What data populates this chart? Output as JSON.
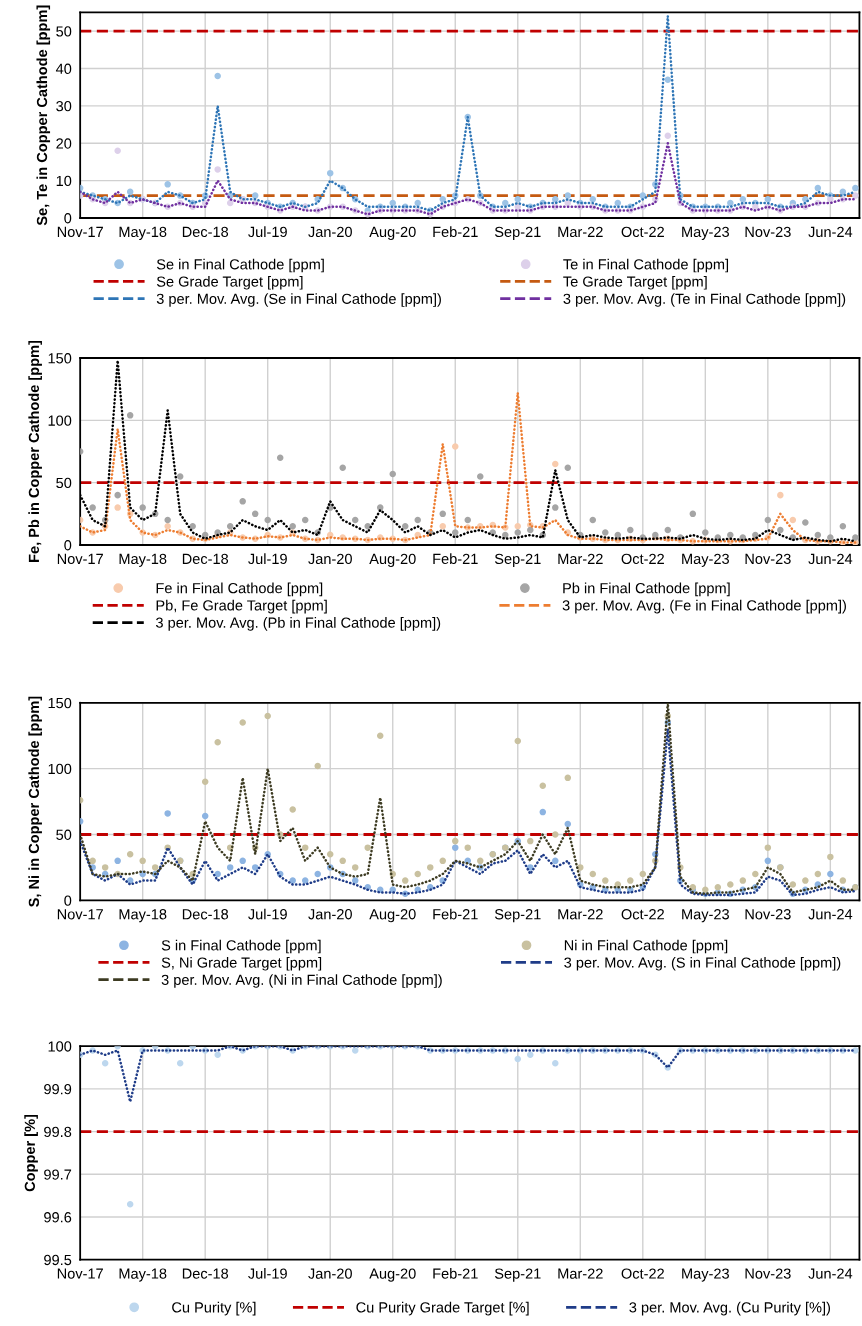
{
  "chart_data": [
    {
      "type": "line",
      "ylabel": "Se, Te in Copper Cathode [ppm]",
      "x": [
        "2017-11-11",
        "2017-12-21",
        "2018-01-30",
        "2018-03-11",
        "2018-04-20",
        "2018-05-30",
        "2018-07-09",
        "2018-08-18",
        "2018-09-27",
        "2018-11-06",
        "2018-12-16",
        "2019-01-25",
        "2019-03-06",
        "2019-04-15",
        "2019-05-25",
        "2019-07-04",
        "2019-08-13",
        "2019-09-22",
        "2019-11-01",
        "2019-12-11",
        "2020-01-20",
        "2020-02-29",
        "2020-04-09",
        "2020-05-19",
        "2020-06-28",
        "2020-08-07",
        "2020-09-16",
        "2020-10-26",
        "2020-12-05",
        "2021-01-14",
        "2021-02-23",
        "2021-04-04",
        "2021-05-14",
        "2021-06-23",
        "2021-08-02",
        "2021-09-11",
        "2021-10-21",
        "2021-11-30",
        "2022-01-09",
        "2022-02-18",
        "2022-03-30",
        "2022-05-09",
        "2022-06-18",
        "2022-07-28",
        "2022-09-06",
        "2022-10-16",
        "2022-11-25",
        "2023-01-04",
        "2023-02-13",
        "2023-03-25",
        "2023-05-04",
        "2023-06-13",
        "2023-07-23",
        "2023-09-01",
        "2023-10-11",
        "2023-11-20",
        "2023-12-30",
        "2024-02-08",
        "2024-03-19",
        "2024-04-28",
        "2024-06-07",
        "2024-07-17",
        "2024-08-26"
      ],
      "xlim": [
        "2017-11-11",
        "2024-09-08"
      ],
      "xticks": [
        {
          "value": "2017-11-11",
          "label": "Nov-17"
        },
        {
          "value": "2018-05-30",
          "label": "May-18"
        },
        {
          "value": "2018-12-16",
          "label": "Dec-18"
        },
        {
          "value": "2019-07-04",
          "label": "Jul-19"
        },
        {
          "value": "2020-01-20",
          "label": "Jan-20"
        },
        {
          "value": "2020-08-07",
          "label": "Aug-20"
        },
        {
          "value": "2021-02-23",
          "label": "Feb-21"
        },
        {
          "value": "2021-09-11",
          "label": "Sep-21"
        },
        {
          "value": "2022-03-30",
          "label": "Mar-22"
        },
        {
          "value": "2022-10-16",
          "label": "Oct-22"
        },
        {
          "value": "2023-05-04",
          "label": "May-23"
        },
        {
          "value": "2023-11-20",
          "label": "Nov-23"
        },
        {
          "value": "2024-06-07",
          "label": "Jun-24"
        }
      ],
      "ylim": [
        0,
        55
      ],
      "yticks": [
        0,
        10,
        20,
        30,
        40,
        50
      ],
      "grid": true,
      "legend": "bottom",
      "series": [
        {
          "name": "Se in Final Cathode [ppm]",
          "type": "scatter",
          "marker": "circle",
          "color": "#9dc3e6",
          "values": [
            8,
            6,
            5,
            4,
            7,
            5,
            4,
            9,
            6,
            4,
            6,
            38,
            6,
            5,
            6,
            4,
            3,
            4,
            3,
            5,
            12,
            8,
            5,
            2,
            3,
            4,
            3,
            4,
            2,
            5,
            6,
            27,
            6,
            3,
            4,
            5,
            3,
            4,
            5,
            6,
            4,
            5,
            3,
            4,
            3,
            6,
            9,
            37,
            6,
            3,
            3,
            3,
            4,
            5,
            4,
            5,
            3,
            4,
            5,
            8,
            6,
            7,
            8
          ]
        },
        {
          "name": "Te in Final Cathode [ppm]",
          "type": "scatter",
          "marker": "circle",
          "color": "#ddd0ea",
          "values": [
            6,
            5,
            4,
            18,
            4,
            5,
            4,
            3,
            4,
            3,
            4,
            13,
            4,
            5,
            4,
            3,
            2,
            3,
            3,
            2,
            3,
            3,
            2,
            1,
            2,
            2,
            2,
            2,
            1,
            3,
            4,
            5,
            4,
            2,
            2,
            3,
            2,
            3,
            3,
            4,
            3,
            3,
            2,
            2,
            2,
            3,
            5,
            22,
            4,
            2,
            2,
            2,
            2,
            3,
            3,
            3,
            2,
            3,
            3,
            4,
            5,
            5,
            6
          ]
        },
        {
          "name": "3 per. Mov. Avg. (Se in Final Cathode [ppm])",
          "line_style": "dotted",
          "color": "#2e75b6",
          "values": [
            7,
            6,
            5,
            4,
            6,
            5,
            4,
            7,
            6,
            4,
            5,
            30,
            7,
            5,
            5,
            4,
            3,
            4,
            3,
            4,
            10,
            8,
            5,
            3,
            3,
            3,
            3,
            3,
            2,
            4,
            5,
            27,
            6,
            3,
            3,
            4,
            3,
            4,
            4,
            5,
            4,
            4,
            3,
            3,
            3,
            5,
            7,
            54,
            5,
            3,
            3,
            3,
            3,
            4,
            4,
            4,
            3,
            3,
            4,
            7,
            6,
            6,
            7
          ]
        },
        {
          "name": "3 per. Mov. Avg. (Te in Final Cathode [ppm])",
          "line_style": "dotted",
          "color": "#7030a0",
          "values": [
            7,
            5,
            4,
            7,
            4,
            5,
            4,
            3,
            4,
            3,
            3,
            10,
            5,
            4,
            4,
            3,
            2,
            3,
            2,
            2,
            3,
            3,
            2,
            1,
            2,
            2,
            2,
            2,
            1,
            3,
            4,
            5,
            4,
            2,
            2,
            2,
            2,
            3,
            3,
            3,
            3,
            3,
            2,
            2,
            2,
            3,
            4,
            20,
            4,
            2,
            2,
            2,
            2,
            3,
            2,
            3,
            2,
            3,
            3,
            4,
            4,
            5,
            5
          ]
        }
      ],
      "ref_lines": [
        {
          "axis": "y",
          "value": 50,
          "label": "Se Grade Target [ppm]",
          "color": "#c00000",
          "line_style": "dashed"
        },
        {
          "axis": "y",
          "value": 6,
          "label": "Te Grade Target [ppm]",
          "color": "#c55a11",
          "line_style": "dashed"
        }
      ]
    },
    {
      "type": "line",
      "ylabel": "Fe, Pb in Copper Cathode [ppm]",
      "x": [
        "2017-11-11",
        "2017-12-21",
        "2018-01-30",
        "2018-03-11",
        "2018-04-20",
        "2018-05-30",
        "2018-07-09",
        "2018-08-18",
        "2018-09-27",
        "2018-11-06",
        "2018-12-16",
        "2019-01-25",
        "2019-03-06",
        "2019-04-15",
        "2019-05-25",
        "2019-07-04",
        "2019-08-13",
        "2019-09-22",
        "2019-11-01",
        "2019-12-11",
        "2020-01-20",
        "2020-02-29",
        "2020-04-09",
        "2020-05-19",
        "2020-06-28",
        "2020-08-07",
        "2020-09-16",
        "2020-10-26",
        "2020-12-05",
        "2021-01-14",
        "2021-02-23",
        "2021-04-04",
        "2021-05-14",
        "2021-06-23",
        "2021-08-02",
        "2021-09-11",
        "2021-10-21",
        "2021-11-30",
        "2022-01-09",
        "2022-02-18",
        "2022-03-30",
        "2022-05-09",
        "2022-06-18",
        "2022-07-28",
        "2022-09-06",
        "2022-10-16",
        "2022-11-25",
        "2023-01-04",
        "2023-02-13",
        "2023-03-25",
        "2023-05-04",
        "2023-06-13",
        "2023-07-23",
        "2023-09-01",
        "2023-10-11",
        "2023-11-20",
        "2023-12-30",
        "2024-02-08",
        "2024-03-19",
        "2024-04-28",
        "2024-06-07",
        "2024-07-17",
        "2024-08-26"
      ],
      "xlim": [
        "2017-11-11",
        "2024-09-08"
      ],
      "xticks": [
        {
          "value": "2017-11-11",
          "label": "Nov-17"
        },
        {
          "value": "2018-05-30",
          "label": "May-18"
        },
        {
          "value": "2018-12-16",
          "label": "Dec-18"
        },
        {
          "value": "2019-07-04",
          "label": "Jul-19"
        },
        {
          "value": "2020-01-20",
          "label": "Jan-20"
        },
        {
          "value": "2020-08-07",
          "label": "Aug-20"
        },
        {
          "value": "2021-02-23",
          "label": "Feb-21"
        },
        {
          "value": "2021-09-11",
          "label": "Sep-21"
        },
        {
          "value": "2022-03-30",
          "label": "Mar-22"
        },
        {
          "value": "2022-10-16",
          "label": "Oct-22"
        },
        {
          "value": "2023-05-04",
          "label": "May-23"
        },
        {
          "value": "2023-11-20",
          "label": "Nov-23"
        },
        {
          "value": "2024-06-07",
          "label": "Jun-24"
        }
      ],
      "ylim": [
        0,
        150
      ],
      "yticks": [
        0,
        50,
        100,
        150
      ],
      "grid": true,
      "legend": "bottom",
      "series": [
        {
          "name": "Fe in Final Cathode [ppm]",
          "type": "scatter",
          "marker": "circle",
          "color": "#f8cbad",
          "values": [
            20,
            10,
            15,
            30,
            25,
            10,
            8,
            15,
            10,
            5,
            5,
            8,
            10,
            6,
            5,
            8,
            6,
            10,
            5,
            4,
            8,
            6,
            5,
            4,
            6,
            5,
            4,
            8,
            10,
            15,
            79,
            14,
            15,
            16,
            14,
            15,
            16,
            15,
            65,
            10,
            6,
            5,
            4,
            4,
            5,
            4,
            6,
            5,
            4,
            3,
            4,
            4,
            3,
            4,
            5,
            6,
            40,
            20,
            4,
            3,
            3,
            2,
            2
          ]
        },
        {
          "name": "Pb in Final Cathode [ppm]",
          "type": "scatter",
          "marker": "circle",
          "color": "#a5a5a5",
          "values": [
            75,
            30,
            20,
            40,
            104,
            30,
            25,
            20,
            55,
            15,
            8,
            10,
            15,
            35,
            25,
            20,
            70,
            15,
            20,
            10,
            30,
            62,
            20,
            15,
            30,
            57,
            15,
            20,
            10,
            25,
            10,
            20,
            55,
            10,
            8,
            10,
            12,
            8,
            30,
            62,
            8,
            20,
            10,
            8,
            12,
            6,
            8,
            12,
            6,
            25,
            10,
            6,
            8,
            6,
            8,
            20,
            12,
            6,
            18,
            8,
            6,
            15,
            6
          ]
        },
        {
          "name": "3 per. Mov. Avg. (Fe in Final Cathode [ppm])",
          "line_style": "dotted",
          "color": "#ed7d31",
          "values": [
            15,
            10,
            12,
            93,
            20,
            10,
            8,
            12,
            10,
            5,
            4,
            6,
            8,
            6,
            5,
            7,
            6,
            8,
            5,
            4,
            6,
            5,
            5,
            4,
            5,
            5,
            4,
            6,
            8,
            81,
            15,
            14,
            14,
            15,
            14,
            122,
            15,
            14,
            20,
            8,
            5,
            5,
            4,
            4,
            4,
            4,
            5,
            4,
            4,
            3,
            3,
            3,
            3,
            3,
            4,
            5,
            25,
            12,
            4,
            3,
            3,
            2,
            2
          ]
        },
        {
          "name": "3 per. Mov. Avg. (Pb in Final Cathode [ppm])",
          "line_style": "dotted",
          "color": "#000000",
          "values": [
            40,
            20,
            15,
            148,
            30,
            20,
            25,
            108,
            25,
            10,
            5,
            8,
            10,
            20,
            15,
            12,
            20,
            10,
            12,
            8,
            35,
            20,
            15,
            10,
            28,
            20,
            10,
            15,
            8,
            12,
            6,
            10,
            12,
            8,
            5,
            6,
            8,
            6,
            60,
            20,
            6,
            8,
            6,
            5,
            6,
            5,
            5,
            6,
            5,
            8,
            5,
            4,
            5,
            4,
            5,
            12,
            8,
            4,
            6,
            4,
            3,
            5,
            3
          ]
        }
      ],
      "ref_lines": [
        {
          "axis": "y",
          "value": 50,
          "label": "Pb, Fe Grade Target [ppm]",
          "color": "#c00000",
          "line_style": "dashed"
        }
      ]
    },
    {
      "type": "line",
      "ylabel": "S, Ni in Copper Cathode [ppm]",
      "x": [
        "2017-11-11",
        "2017-12-21",
        "2018-01-30",
        "2018-03-11",
        "2018-04-20",
        "2018-05-30",
        "2018-07-09",
        "2018-08-18",
        "2018-09-27",
        "2018-11-06",
        "2018-12-16",
        "2019-01-25",
        "2019-03-06",
        "2019-04-15",
        "2019-05-25",
        "2019-07-04",
        "2019-08-13",
        "2019-09-22",
        "2019-11-01",
        "2019-12-11",
        "2020-01-20",
        "2020-02-29",
        "2020-04-09",
        "2020-05-19",
        "2020-06-28",
        "2020-08-07",
        "2020-09-16",
        "2020-10-26",
        "2020-12-05",
        "2021-01-14",
        "2021-02-23",
        "2021-04-04",
        "2021-05-14",
        "2021-06-23",
        "2021-08-02",
        "2021-09-11",
        "2021-10-21",
        "2021-11-30",
        "2022-01-09",
        "2022-02-18",
        "2022-03-30",
        "2022-05-09",
        "2022-06-18",
        "2022-07-28",
        "2022-09-06",
        "2022-10-16",
        "2022-11-25",
        "2023-01-04",
        "2023-02-13",
        "2023-03-25",
        "2023-05-04",
        "2023-06-13",
        "2023-07-23",
        "2023-09-01",
        "2023-10-11",
        "2023-11-20",
        "2023-12-30",
        "2024-02-08",
        "2024-03-19",
        "2024-04-28",
        "2024-06-07",
        "2024-07-17",
        "2024-08-26"
      ],
      "xlim": [
        "2017-11-11",
        "2024-09-08"
      ],
      "xticks": [
        {
          "value": "2017-11-11",
          "label": "Nov-17"
        },
        {
          "value": "2018-05-30",
          "label": "May-18"
        },
        {
          "value": "2018-12-16",
          "label": "Dec-18"
        },
        {
          "value": "2019-07-04",
          "label": "Jul-19"
        },
        {
          "value": "2020-01-20",
          "label": "Jan-20"
        },
        {
          "value": "2020-08-07",
          "label": "Aug-20"
        },
        {
          "value": "2021-02-23",
          "label": "Feb-21"
        },
        {
          "value": "2021-09-11",
          "label": "Sep-21"
        },
        {
          "value": "2022-03-30",
          "label": "Mar-22"
        },
        {
          "value": "2022-10-16",
          "label": "Oct-22"
        },
        {
          "value": "2023-05-04",
          "label": "May-23"
        },
        {
          "value": "2023-11-20",
          "label": "Nov-23"
        },
        {
          "value": "2024-06-07",
          "label": "Jun-24"
        }
      ],
      "ylim": [
        0,
        150
      ],
      "yticks": [
        0,
        50,
        100,
        150
      ],
      "grid": true,
      "legend": "bottom",
      "series": [
        {
          "name": "S in Final Cathode [ppm]",
          "type": "scatter",
          "marker": "circle",
          "color": "#8db4e2",
          "values": [
            60,
            25,
            20,
            30,
            15,
            20,
            20,
            66,
            30,
            15,
            64,
            20,
            25,
            30,
            25,
            35,
            20,
            15,
            15,
            20,
            25,
            20,
            15,
            10,
            8,
            8,
            5,
            8,
            10,
            15,
            40,
            30,
            25,
            35,
            40,
            45,
            25,
            67,
            30,
            58,
            12,
            10,
            8,
            8,
            8,
            10,
            35,
            135,
            15,
            8,
            5,
            6,
            5,
            8,
            10,
            30,
            25,
            5,
            8,
            12,
            20,
            8,
            10
          ]
        },
        {
          "name": "Ni in Final Cathode [ppm]",
          "type": "scatter",
          "marker": "circle",
          "color": "#c9c1a0",
          "values": [
            76,
            30,
            25,
            20,
            35,
            30,
            25,
            40,
            30,
            20,
            90,
            120,
            40,
            135,
            40,
            140,
            50,
            69,
            40,
            102,
            35,
            30,
            25,
            40,
            125,
            20,
            15,
            20,
            25,
            30,
            45,
            40,
            30,
            35,
            40,
            121,
            45,
            87,
            50,
            93,
            25,
            20,
            15,
            12,
            15,
            20,
            30,
            140,
            25,
            10,
            8,
            10,
            12,
            15,
            20,
            40,
            25,
            12,
            15,
            20,
            33,
            15,
            10
          ]
        },
        {
          "name": "3 per. Mov. Avg. (S in Final Cathode [ppm])",
          "line_style": "dotted",
          "color": "#1f3c88",
          "values": [
            45,
            20,
            15,
            20,
            12,
            15,
            15,
            40,
            25,
            12,
            30,
            15,
            20,
            25,
            20,
            35,
            18,
            12,
            12,
            15,
            18,
            15,
            12,
            8,
            6,
            6,
            5,
            6,
            8,
            12,
            30,
            25,
            20,
            28,
            30,
            38,
            20,
            35,
            25,
            30,
            10,
            8,
            6,
            6,
            6,
            8,
            25,
            130,
            12,
            5,
            4,
            4,
            4,
            5,
            6,
            18,
            15,
            4,
            5,
            8,
            10,
            6,
            7
          ]
        },
        {
          "name": "3 per. Mov. Avg. (Ni in Final Cathode [ppm])",
          "line_style": "dotted",
          "color": "#3d3b22",
          "values": [
            50,
            20,
            18,
            20,
            20,
            22,
            20,
            30,
            25,
            15,
            60,
            40,
            30,
            93,
            35,
            100,
            45,
            55,
            30,
            40,
            25,
            20,
            18,
            20,
            78,
            12,
            10,
            12,
            15,
            20,
            30,
            28,
            25,
            30,
            35,
            45,
            30,
            50,
            35,
            55,
            15,
            12,
            10,
            10,
            10,
            12,
            25,
            150,
            18,
            6,
            5,
            6,
            6,
            8,
            10,
            25,
            20,
            6,
            8,
            10,
            15,
            8,
            8
          ]
        }
      ],
      "ref_lines": [
        {
          "axis": "y",
          "value": 50,
          "label": "S, Ni Grade Target [ppm]",
          "color": "#c00000",
          "line_style": "dashed"
        }
      ]
    },
    {
      "type": "line",
      "ylabel": "Copper [%]",
      "x": [
        "2017-11-11",
        "2017-12-21",
        "2018-01-30",
        "2018-03-11",
        "2018-04-20",
        "2018-05-30",
        "2018-07-09",
        "2018-08-18",
        "2018-09-27",
        "2018-11-06",
        "2018-12-16",
        "2019-01-25",
        "2019-03-06",
        "2019-04-15",
        "2019-05-25",
        "2019-07-04",
        "2019-08-13",
        "2019-09-22",
        "2019-11-01",
        "2019-12-11",
        "2020-01-20",
        "2020-02-29",
        "2020-04-09",
        "2020-05-19",
        "2020-06-28",
        "2020-08-07",
        "2020-09-16",
        "2020-10-26",
        "2020-12-05",
        "2021-01-14",
        "2021-02-23",
        "2021-04-04",
        "2021-05-14",
        "2021-06-23",
        "2021-08-02",
        "2021-09-11",
        "2021-10-21",
        "2021-11-30",
        "2022-01-09",
        "2022-02-18",
        "2022-03-30",
        "2022-05-09",
        "2022-06-18",
        "2022-07-28",
        "2022-09-06",
        "2022-10-16",
        "2022-11-25",
        "2023-01-04",
        "2023-02-13",
        "2023-03-25",
        "2023-05-04",
        "2023-06-13",
        "2023-07-23",
        "2023-09-01",
        "2023-10-11",
        "2023-11-20",
        "2023-12-30",
        "2024-02-08",
        "2024-03-19",
        "2024-04-28",
        "2024-06-07",
        "2024-07-17",
        "2024-08-26"
      ],
      "xlim": [
        "2017-11-11",
        "2024-09-08"
      ],
      "xticks": [
        {
          "value": "2017-11-11",
          "label": "Nov-17"
        },
        {
          "value": "2018-05-30",
          "label": "May-18"
        },
        {
          "value": "2018-12-16",
          "label": "Dec-18"
        },
        {
          "value": "2019-07-04",
          "label": "Jul-19"
        },
        {
          "value": "2020-01-20",
          "label": "Jan-20"
        },
        {
          "value": "2020-08-07",
          "label": "Aug-20"
        },
        {
          "value": "2021-02-23",
          "label": "Feb-21"
        },
        {
          "value": "2021-09-11",
          "label": "Sep-21"
        },
        {
          "value": "2022-03-30",
          "label": "Mar-22"
        },
        {
          "value": "2022-10-16",
          "label": "Oct-22"
        },
        {
          "value": "2023-05-04",
          "label": "May-23"
        },
        {
          "value": "2023-11-20",
          "label": "Nov-23"
        },
        {
          "value": "2024-06-07",
          "label": "Jun-24"
        }
      ],
      "ylim": [
        99.5,
        100
      ],
      "yticks": [
        99.5,
        99.6,
        99.7,
        99.8,
        99.9,
        100
      ],
      "grid": true,
      "legend": "bottom",
      "series": [
        {
          "name": "Cu Purity [%]",
          "type": "scatter",
          "marker": "circle",
          "color": "#bdd7ee",
          "values": [
            99.98,
            99.99,
            99.96,
            100,
            99.63,
            99.99,
            100,
            99.99,
            99.96,
            100,
            99.99,
            99.98,
            100,
            99.99,
            100,
            100,
            100,
            99.99,
            100,
            100,
            100,
            100,
            99.99,
            100,
            100,
            100,
            100,
            100,
            99.99,
            99.99,
            99.99,
            99.99,
            99.99,
            99.99,
            99.99,
            99.97,
            99.98,
            99.99,
            99.96,
            99.99,
            99.99,
            99.99,
            99.99,
            99.99,
            99.99,
            99.99,
            99.98,
            99.95,
            99.99,
            99.99,
            99.99,
            99.99,
            99.99,
            99.99,
            99.99,
            99.99,
            99.99,
            99.99,
            99.99,
            99.99,
            99.99,
            99.99,
            99.99
          ]
        },
        {
          "name": "3 per. Mov. Avg. (Cu Purity [%])",
          "line_style": "dotted",
          "color": "#1f3c88",
          "values": [
            99.98,
            99.99,
            99.98,
            99.99,
            99.87,
            99.99,
            99.99,
            99.99,
            99.99,
            99.99,
            99.99,
            99.99,
            100,
            99.99,
            100,
            100,
            100,
            99.99,
            100,
            100,
            100,
            100,
            100,
            100,
            100,
            100,
            100,
            100,
            99.99,
            99.99,
            99.99,
            99.99,
            99.99,
            99.99,
            99.99,
            99.99,
            99.99,
            99.99,
            99.99,
            99.99,
            99.99,
            99.99,
            99.99,
            99.99,
            99.99,
            99.99,
            99.98,
            99.95,
            99.99,
            99.99,
            99.99,
            99.99,
            99.99,
            99.99,
            99.99,
            99.99,
            99.99,
            99.99,
            99.99,
            99.99,
            99.99,
            99.99,
            99.99
          ]
        }
      ],
      "ref_lines": [
        {
          "axis": "y",
          "value": 99.8,
          "label": "Cu Purity Grade Target [%]",
          "color": "#c00000",
          "line_style": "dashed"
        }
      ]
    }
  ]
}
